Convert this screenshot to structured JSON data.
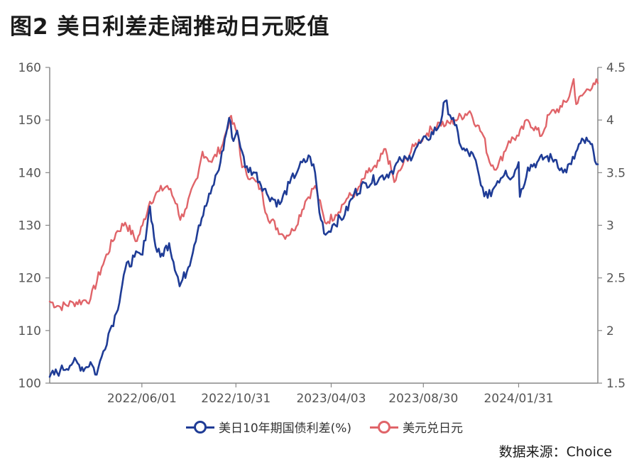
{
  "title": "图2  美日利差走阔推动日元贬值",
  "source": "数据来源：Choice",
  "chart_data": {
    "type": "line",
    "x_ticks": [
      "2022/06/01",
      "2022/10/31",
      "2023/04/03",
      "2023/08/30",
      "2024/01/31"
    ],
    "x_range": [
      "2022-01-03",
      "2024-06-07"
    ],
    "y_left": {
      "ticks": [
        "100",
        "110",
        "120",
        "130",
        "140",
        "150",
        "160"
      ],
      "ylim": [
        100,
        160
      ]
    },
    "y_right": {
      "ticks": [
        "1.5",
        "2",
        "2.5",
        "3",
        "3.5",
        "4",
        "4.5"
      ],
      "ylim": [
        1.5,
        4.5
      ]
    },
    "grid": false,
    "legend_position": "bottom",
    "series": [
      {
        "name": "美日10年期国债利差(%)",
        "axis": "right",
        "color": "#1f3c96",
        "points": [
          [
            "2022-01-03",
            1.56
          ],
          [
            "2022-01-20",
            1.62
          ],
          [
            "2022-02-10",
            1.7
          ],
          [
            "2022-03-01",
            1.64
          ],
          [
            "2022-03-10",
            1.7
          ],
          [
            "2022-03-20",
            1.58
          ],
          [
            "2022-03-28",
            1.75
          ],
          [
            "2022-04-08",
            1.97
          ],
          [
            "2022-04-21",
            2.17
          ],
          [
            "2022-05-05",
            2.58
          ],
          [
            "2022-05-20",
            2.7
          ],
          [
            "2022-06-02",
            2.72
          ],
          [
            "2022-06-14",
            3.18
          ],
          [
            "2022-06-23",
            2.8
          ],
          [
            "2022-07-01",
            2.7
          ],
          [
            "2022-07-15",
            2.83
          ],
          [
            "2022-07-29",
            2.51
          ],
          [
            "2022-08-01",
            2.42
          ],
          [
            "2022-08-15",
            2.6
          ],
          [
            "2022-09-01",
            3.0
          ],
          [
            "2022-09-20",
            3.3
          ],
          [
            "2022-10-06",
            3.6
          ],
          [
            "2022-10-20",
            4.02
          ],
          [
            "2022-10-27",
            3.8
          ],
          [
            "2022-11-02",
            3.9
          ],
          [
            "2022-11-10",
            3.7
          ],
          [
            "2022-11-15",
            3.55
          ],
          [
            "2022-12-01",
            3.5
          ],
          [
            "2022-12-20",
            3.3
          ],
          [
            "2023-01-10",
            3.2
          ],
          [
            "2023-01-26",
            3.4
          ],
          [
            "2023-02-10",
            3.55
          ],
          [
            "2023-02-28",
            3.65
          ],
          [
            "2023-03-08",
            3.5
          ],
          [
            "2023-03-15",
            3.12
          ],
          [
            "2023-03-25",
            2.91
          ],
          [
            "2023-04-05",
            3.0
          ],
          [
            "2023-04-25",
            3.1
          ],
          [
            "2023-05-10",
            3.3
          ],
          [
            "2023-05-29",
            3.4
          ],
          [
            "2023-06-20",
            3.45
          ],
          [
            "2023-07-07",
            3.5
          ],
          [
            "2023-07-25",
            3.62
          ],
          [
            "2023-08-05",
            3.62
          ],
          [
            "2023-08-20",
            3.75
          ],
          [
            "2023-09-05",
            3.82
          ],
          [
            "2023-09-25",
            3.95
          ],
          [
            "2023-10-04",
            4.18
          ],
          [
            "2023-10-20",
            3.95
          ],
          [
            "2023-11-01",
            3.72
          ],
          [
            "2023-11-20",
            3.65
          ],
          [
            "2023-12-01",
            3.38
          ],
          [
            "2023-12-12",
            3.26
          ],
          [
            "2023-12-28",
            3.42
          ],
          [
            "2024-01-10",
            3.52
          ],
          [
            "2024-01-20",
            3.45
          ],
          [
            "2024-01-31",
            3.6
          ],
          [
            "2024-02-02",
            3.27
          ],
          [
            "2024-02-15",
            3.55
          ],
          [
            "2024-03-01",
            3.6
          ],
          [
            "2024-03-15",
            3.65
          ],
          [
            "2024-04-01",
            3.62
          ],
          [
            "2024-04-12",
            3.5
          ],
          [
            "2024-04-25",
            3.58
          ],
          [
            "2024-05-10",
            3.78
          ],
          [
            "2024-05-22",
            3.8
          ],
          [
            "2024-05-31",
            3.7
          ],
          [
            "2024-06-07",
            3.58
          ]
        ]
      },
      {
        "name": "美元兑日元",
        "axis": "left",
        "color": "#e06469",
        "points": [
          [
            "2022-01-03",
            115.5
          ],
          [
            "2022-01-20",
            114.5
          ],
          [
            "2022-02-10",
            115.3
          ],
          [
            "2022-02-25",
            115.6
          ],
          [
            "2022-03-10",
            116.0
          ],
          [
            "2022-03-28",
            122.0
          ],
          [
            "2022-04-20",
            128.5
          ],
          [
            "2022-05-05",
            130.5
          ],
          [
            "2022-05-24",
            127.0
          ],
          [
            "2022-06-02",
            130.0
          ],
          [
            "2022-06-14",
            134.5
          ],
          [
            "2022-06-29",
            136.5
          ],
          [
            "2022-07-12",
            137.5
          ],
          [
            "2022-07-28",
            134.0
          ],
          [
            "2022-08-02",
            131.0
          ],
          [
            "2022-08-10",
            133.0
          ],
          [
            "2022-08-30",
            139.0
          ],
          [
            "2022-09-07",
            144.0
          ],
          [
            "2022-09-22",
            142.0
          ],
          [
            "2022-10-10",
            145.5
          ],
          [
            "2022-10-21",
            150.5
          ],
          [
            "2022-11-04",
            147.0
          ],
          [
            "2022-11-10",
            141.0
          ],
          [
            "2022-11-25",
            139.0
          ],
          [
            "2022-12-10",
            137.0
          ],
          [
            "2022-12-20",
            132.0
          ],
          [
            "2023-01-16",
            128.0
          ],
          [
            "2023-02-01",
            129.0
          ],
          [
            "2023-02-20",
            134.5
          ],
          [
            "2023-03-08",
            137.5
          ],
          [
            "2023-03-24",
            130.5
          ],
          [
            "2023-04-10",
            132.0
          ],
          [
            "2023-04-28",
            135.0
          ],
          [
            "2023-05-15",
            136.5
          ],
          [
            "2023-06-01",
            140.0
          ],
          [
            "2023-06-15",
            141.0
          ],
          [
            "2023-06-30",
            144.5
          ],
          [
            "2023-07-14",
            138.2
          ],
          [
            "2023-07-28",
            141.5
          ],
          [
            "2023-08-15",
            145.0
          ],
          [
            "2023-09-05",
            147.5
          ],
          [
            "2023-09-25",
            149.5
          ],
          [
            "2023-10-05",
            149.0
          ],
          [
            "2023-10-20",
            150.0
          ],
          [
            "2023-11-13",
            151.7
          ],
          [
            "2023-11-25",
            149.0
          ],
          [
            "2023-12-05",
            147.0
          ],
          [
            "2023-12-15",
            142.0
          ],
          [
            "2023-12-28",
            141.0
          ],
          [
            "2024-01-15",
            146.0
          ],
          [
            "2024-01-31",
            147.0
          ],
          [
            "2024-02-15",
            150.0
          ],
          [
            "2024-03-08",
            147.0
          ],
          [
            "2024-03-20",
            151.0
          ],
          [
            "2024-04-10",
            152.5
          ],
          [
            "2024-04-22",
            154.5
          ],
          [
            "2024-04-29",
            157.8
          ],
          [
            "2024-05-03",
            153.0
          ],
          [
            "2024-05-15",
            155.0
          ],
          [
            "2024-05-31",
            157.0
          ],
          [
            "2024-06-07",
            157.0
          ]
        ]
      }
    ]
  }
}
